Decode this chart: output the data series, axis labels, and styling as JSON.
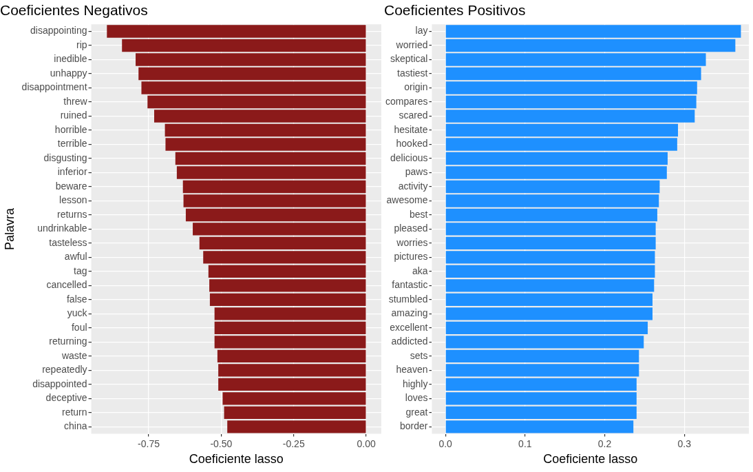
{
  "chart_data": [
    {
      "type": "bar",
      "orientation": "horizontal",
      "title": "Coeficientes Negativos",
      "xlabel": "Coeficiente lasso",
      "ylabel": "Palavra",
      "categories": [
        "disappointing",
        "rip",
        "inedible",
        "unhappy",
        "disappointment",
        "threw",
        "ruined",
        "horrible",
        "terrible",
        "disgusting",
        "inferior",
        "beware",
        "lesson",
        "returns",
        "undrinkable",
        "tasteless",
        "awful",
        "tag",
        "cancelled",
        "false",
        "yuck",
        "foul",
        "returning",
        "waste",
        "repeatedly",
        "disappointed",
        "deceptive",
        "return",
        "china"
      ],
      "values": [
        -0.894,
        -0.842,
        -0.795,
        -0.785,
        -0.775,
        -0.754,
        -0.731,
        -0.694,
        -0.692,
        -0.658,
        -0.653,
        -0.632,
        -0.63,
        -0.622,
        -0.598,
        -0.575,
        -0.562,
        -0.544,
        -0.541,
        -0.539,
        -0.523,
        -0.523,
        -0.523,
        -0.513,
        -0.51,
        -0.51,
        -0.495,
        -0.49,
        -0.479
      ],
      "color": "#8b1a1a",
      "xlim": [
        -0.948,
        0.052
      ],
      "xticks": [
        {
          "value": -0.75,
          "label": "-0.75"
        },
        {
          "value": -0.5,
          "label": "-0.50"
        },
        {
          "value": -0.25,
          "label": "-0.25"
        },
        {
          "value": 0,
          "label": "0.00"
        }
      ],
      "grid": true,
      "legend": false
    },
    {
      "type": "bar",
      "orientation": "horizontal",
      "title": "Coeficientes Positivos",
      "xlabel": "Coeficiente lasso",
      "categories": [
        "lay",
        "worried",
        "skeptical",
        "tastiest",
        "origin",
        "compares",
        "scared",
        "hesitate",
        "hooked",
        "delicious",
        "paws",
        "activity",
        "awesome",
        "best",
        "pleased",
        "worries",
        "pictures",
        "aka",
        "fantastic",
        "stumbled",
        "amazing",
        "excellent",
        "addicted",
        "sets",
        "heaven",
        "highly",
        "loves",
        "great",
        "border"
      ],
      "values": [
        0.371,
        0.364,
        0.327,
        0.321,
        0.316,
        0.315,
        0.313,
        0.292,
        0.291,
        0.279,
        0.278,
        0.269,
        0.268,
        0.266,
        0.264,
        0.264,
        0.263,
        0.263,
        0.262,
        0.26,
        0.26,
        0.254,
        0.249,
        0.243,
        0.243,
        0.24,
        0.24,
        0.24,
        0.236
      ],
      "color": "#1e90ff",
      "xlim": [
        -0.017,
        0.381
      ],
      "xticks": [
        {
          "value": 0,
          "label": "0.0"
        },
        {
          "value": 0.1,
          "label": "0.1"
        },
        {
          "value": 0.2,
          "label": "0.2"
        },
        {
          "value": 0.3,
          "label": "0.3"
        }
      ],
      "grid": true,
      "legend": false
    }
  ]
}
